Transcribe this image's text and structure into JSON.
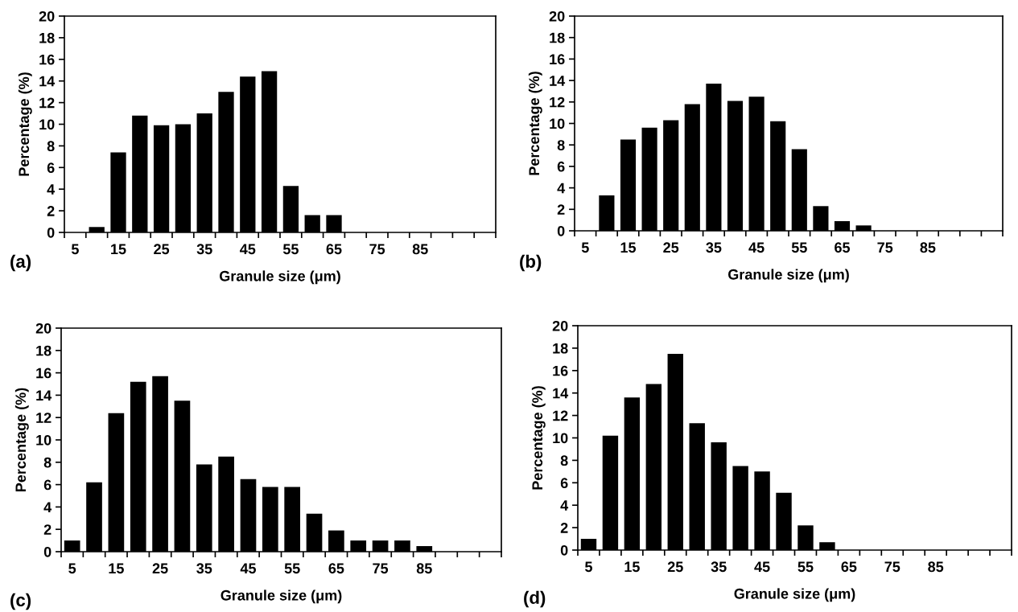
{
  "chart_data": [
    {
      "type": "bar",
      "xlabel": "Granule size (μm)",
      "ylabel": "Percentage (%)",
      "annotations": [
        "(a)"
      ],
      "categories": [
        "5",
        null,
        "15",
        null,
        "25",
        null,
        "35",
        null,
        "45",
        null,
        "55",
        null,
        "65",
        null,
        "75",
        null,
        "85",
        null,
        null,
        null
      ],
      "values": [
        0,
        0.5,
        7.4,
        10.8,
        9.9,
        10.0,
        11.0,
        13.0,
        14.4,
        14.9,
        4.3,
        1.6,
        1.6,
        0,
        0,
        0,
        0,
        0,
        0,
        0
      ],
      "color": "#000000",
      "ylim": [
        0,
        20
      ],
      "yticks": [
        0,
        2,
        4,
        6,
        8,
        10,
        12,
        14,
        16,
        18,
        20
      ],
      "grid": false,
      "legend": false
    },
    {
      "type": "bar",
      "xlabel": "Granule size (μm)",
      "ylabel": "Percentage (%)",
      "annotations": [
        "(b)"
      ],
      "categories": [
        "5",
        null,
        "15",
        null,
        "25",
        null,
        "35",
        null,
        "45",
        null,
        "55",
        null,
        "65",
        null,
        "75",
        null,
        "85",
        null,
        null,
        null
      ],
      "values": [
        0,
        3.3,
        8.5,
        9.6,
        10.3,
        11.8,
        13.7,
        12.1,
        12.5,
        10.2,
        7.6,
        2.3,
        0.9,
        0.5,
        0,
        0,
        0,
        0,
        0,
        0
      ],
      "color": "#000000",
      "ylim": [
        0,
        20
      ],
      "yticks": [
        0,
        2,
        4,
        6,
        8,
        10,
        12,
        14,
        16,
        18,
        20
      ],
      "grid": false,
      "legend": false
    },
    {
      "type": "bar",
      "xlabel": "Granule size (μm)",
      "ylabel": "Percentage (%)",
      "annotations": [
        "(c)"
      ],
      "categories": [
        "5",
        null,
        "15",
        null,
        "25",
        null,
        "35",
        null,
        "45",
        null,
        "55",
        null,
        "65",
        null,
        "75",
        null,
        "85",
        null,
        null,
        null
      ],
      "values": [
        1.0,
        6.2,
        12.4,
        15.2,
        15.7,
        13.5,
        7.8,
        8.5,
        6.5,
        5.8,
        5.8,
        3.4,
        1.9,
        1.0,
        1.0,
        1.0,
        0.5,
        0,
        0,
        0
      ],
      "color": "#000000",
      "ylim": [
        0,
        20
      ],
      "yticks": [
        0,
        2,
        4,
        6,
        8,
        10,
        12,
        14,
        16,
        18,
        20
      ],
      "grid": false,
      "legend": false
    },
    {
      "type": "bar",
      "xlabel": "Granule size (μm)",
      "ylabel": "Percentage (%)",
      "annotations": [
        "(d)"
      ],
      "categories": [
        "5",
        null,
        "15",
        null,
        "25",
        null,
        "35",
        null,
        "45",
        null,
        "55",
        null,
        "65",
        null,
        "75",
        null,
        "85",
        null,
        null,
        null
      ],
      "values": [
        1.0,
        10.2,
        13.6,
        14.8,
        17.5,
        11.3,
        9.6,
        7.5,
        7.0,
        5.1,
        2.2,
        0.7,
        0,
        0,
        0,
        0,
        0,
        0,
        0,
        0
      ],
      "color": "#000000",
      "ylim": [
        0,
        20
      ],
      "yticks": [
        0,
        2,
        4,
        6,
        8,
        10,
        12,
        14,
        16,
        18,
        20
      ],
      "grid": false,
      "legend": false
    }
  ]
}
